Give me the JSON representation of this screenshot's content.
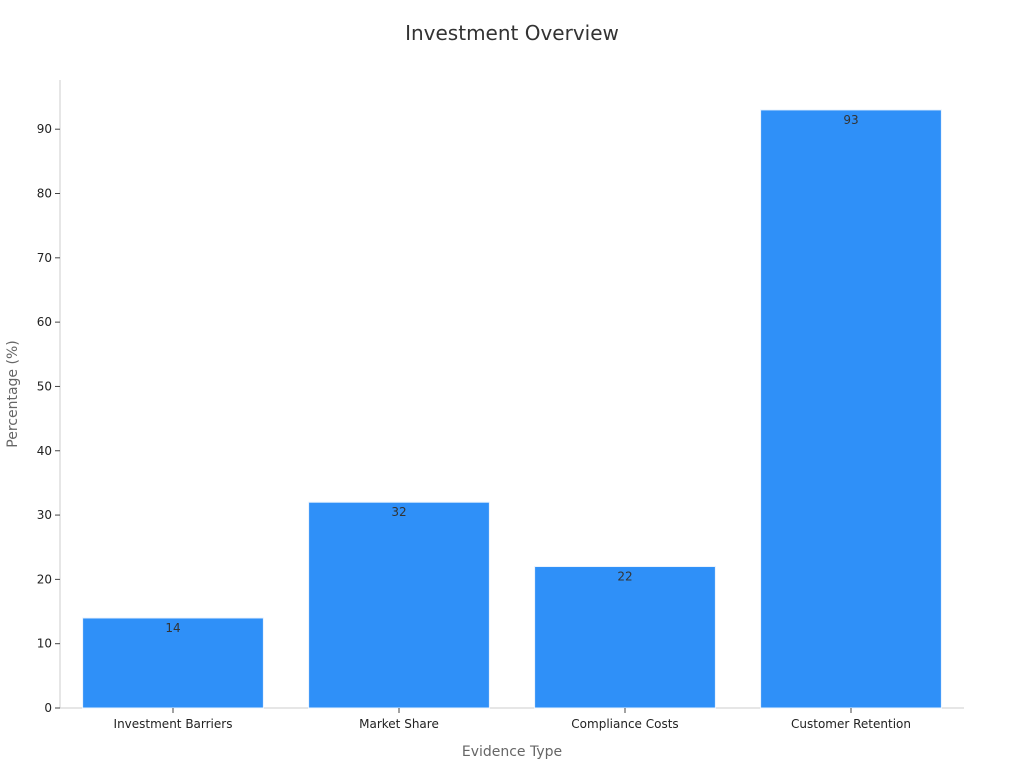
{
  "chart_data": {
    "type": "bar",
    "title": "Investment Overview",
    "xlabel": "Evidence Type",
    "ylabel": "Percentage (%)",
    "categories": [
      "Investment Barriers",
      "Market Share",
      "Compliance Costs",
      "Customer Retention"
    ],
    "values": [
      14,
      32,
      22,
      93
    ],
    "ylim": [
      0,
      97.65
    ],
    "yticks": [
      0,
      10,
      20,
      30,
      40,
      50,
      60,
      70,
      80,
      90
    ],
    "grid": false,
    "data_labels": true,
    "colors": {
      "bar": "#2f90f8",
      "bar_edge": "#eaf3fe"
    }
  }
}
